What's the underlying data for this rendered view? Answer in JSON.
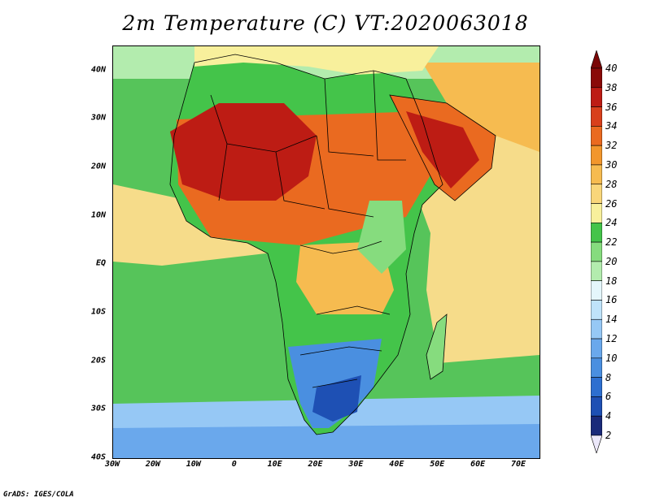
{
  "title": "2m Temperature (C) VT:2020063018",
  "credit": "GrADS: IGES/COLA",
  "axes": {
    "lat_labels": [
      "40N",
      "30N",
      "20N",
      "10N",
      "EQ",
      "10S",
      "20S",
      "30S",
      "40S"
    ],
    "lon_labels": [
      "30W",
      "20W",
      "10W",
      "0",
      "10E",
      "20E",
      "30E",
      "40E",
      "50E",
      "60E",
      "70E"
    ],
    "lat_range": [
      -40,
      45
    ],
    "lon_range": [
      -30,
      75
    ]
  },
  "colorbar": {
    "labels": [
      "2",
      "4",
      "6",
      "8",
      "10",
      "12",
      "14",
      "16",
      "18",
      "20",
      "22",
      "24",
      "26",
      "28",
      "30",
      "32",
      "34",
      "36",
      "38",
      "40"
    ],
    "colors": [
      "#ece8fa",
      "#1a2a7a",
      "#1e50b4",
      "#2d6fd0",
      "#4a8fe0",
      "#6aa8ec",
      "#96c8f5",
      "#bfe3fa",
      "#e4f6fb",
      "#b3ecae",
      "#86dc7e",
      "#44c44a",
      "#f8f09c",
      "#f9d67a",
      "#f6bb50",
      "#f2962c",
      "#ea6a20",
      "#d8401c",
      "#bd1c14",
      "#8a0a08",
      "#7a0606"
    ]
  },
  "field_colors": {
    "sea_mid": "#56c45a",
    "sea_warm": "#f6dc8a",
    "sea_cool": "#b3ecae",
    "sea_cold": "#96c8f5",
    "sea_south": "#6aa8ec",
    "land_hot": "#bd1c14",
    "land_warm": "#ea6a20",
    "land_mild": "#f6bb50",
    "land_temp": "#f8f09c",
    "land_green": "#44c44a",
    "land_cool": "#86dc7e",
    "land_cold": "#4a8fe0",
    "land_coldest": "#1e50b4",
    "boundary": "#000000"
  }
}
